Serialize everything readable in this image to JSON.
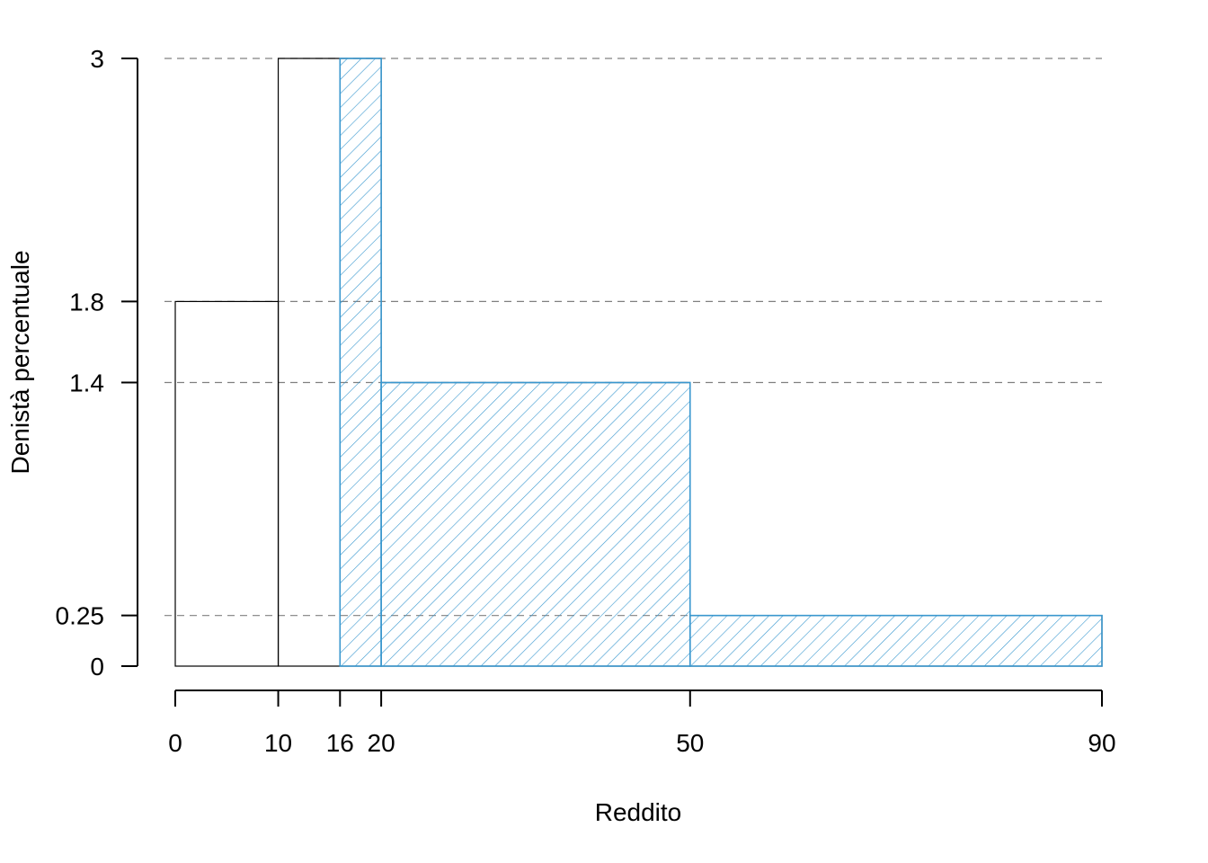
{
  "chart_data": {
    "type": "histogram",
    "xlabel": "Reddito",
    "ylabel": "Denistà percentuale",
    "xlim": [
      0,
      90
    ],
    "ylim": [
      0,
      3
    ],
    "x_ticks": [
      {
        "value": 0,
        "label": "0"
      },
      {
        "value": 10,
        "label": "10"
      },
      {
        "value": 16,
        "label": "16"
      },
      {
        "value": 20,
        "label": "20"
      },
      {
        "value": 50,
        "label": "50"
      },
      {
        "value": 90,
        "label": "90"
      }
    ],
    "y_ticks": [
      {
        "value": 0,
        "label": "0"
      },
      {
        "value": 0.25,
        "label": "0.25"
      },
      {
        "value": 1.4,
        "label": "1.4"
      },
      {
        "value": 1.8,
        "label": "1.8"
      },
      {
        "value": 3,
        "label": "3"
      }
    ],
    "bars": [
      {
        "x0": 0,
        "x1": 10,
        "density": 1.8,
        "hatched": false
      },
      {
        "x0": 10,
        "x1": 20,
        "density": 3,
        "hatched": false
      },
      {
        "x0": 20,
        "x1": 50,
        "density": 1.4,
        "hatched": false
      },
      {
        "x0": 50,
        "x1": 90,
        "density": 0.25,
        "hatched": false
      },
      {
        "x0": 16,
        "x1": 20,
        "density": 3,
        "hatched": true
      },
      {
        "x0": 20,
        "x1": 50,
        "density": 1.4,
        "hatched": true
      },
      {
        "x0": 50,
        "x1": 90,
        "density": 0.25,
        "hatched": true
      }
    ],
    "guide_lines": [
      3,
      1.8,
      1.4,
      0.25
    ],
    "colors": {
      "outline": "#000000",
      "highlight": "#3a98cf",
      "guide": "#808080"
    },
    "grid": false,
    "legend": "none"
  }
}
